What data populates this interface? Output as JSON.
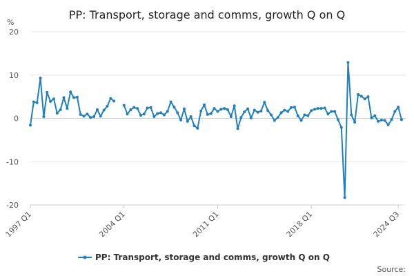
{
  "chart_data": {
    "type": "line",
    "title": "PP: Transport, storage and comms, growth Q on Q",
    "ylabel": "%",
    "ylim": [
      -20,
      20
    ],
    "yticks": [
      20,
      10,
      0,
      -10,
      -20
    ],
    "xtick_labels": [
      "1997 Q1",
      "2004 Q1",
      "2011 Q1",
      "2018 Q1",
      "2024 Q3"
    ],
    "xtick_indices": [
      0,
      28,
      56,
      84,
      110
    ],
    "legend_position": "bottom",
    "credits": "Source:",
    "series": [
      {
        "name": "PP: Transport, storage and comms, growth Q on Q",
        "color": "#1f7fbf",
        "values": [
          -1.6,
          3.8,
          3.6,
          9.3,
          0.4,
          6.0,
          3.9,
          4.5,
          1.2,
          2.0,
          4.8,
          2.3,
          6.1,
          4.8,
          4.9,
          0.9,
          0.5,
          1.0,
          0.2,
          0.4,
          2.0,
          0.5,
          1.9,
          2.8,
          4.6,
          4.0,
          null,
          null,
          3.0,
          1.0,
          2.0,
          2.5,
          2.3,
          0.7,
          1.0,
          2.4,
          2.5,
          0.4,
          1.1,
          1.3,
          0.8,
          1.6,
          3.8,
          2.6,
          1.3,
          -0.4,
          2.2,
          -0.7,
          0.4,
          -1.7,
          -2.3,
          1.7,
          3.1,
          0.9,
          1.1,
          2.3,
          1.6,
          2.1,
          2.3,
          2.0,
          0.4,
          2.9,
          -2.4,
          0.2,
          1.5,
          2.2,
          0.1,
          1.9,
          1.4,
          1.7,
          3.7,
          1.8,
          0.8,
          -0.5,
          0.2,
          1.3,
          1.9,
          1.6,
          2.5,
          2.6,
          0.6,
          -0.5,
          0.8,
          0.6,
          1.8,
          2.1,
          2.3,
          2.3,
          2.4,
          1.0,
          1.6,
          1.6,
          -0.3,
          -2.1,
          -18.3,
          12.9,
          0.8,
          -0.9,
          5.5,
          5.1,
          4.5,
          5.0,
          0.1,
          0.6,
          -0.7,
          -0.4,
          -0.5,
          -1.5,
          -0.3,
          1.6,
          2.6,
          -0.3
        ]
      }
    ]
  }
}
